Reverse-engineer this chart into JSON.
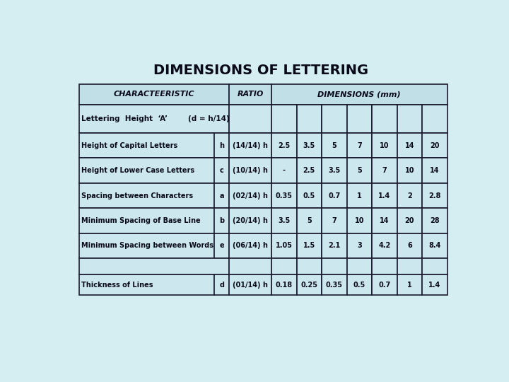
{
  "title": "DIMENSIONS OF LETTERING",
  "bg_color": "#d4eef2",
  "table_bg": "#cce8ee",
  "header_bg": "#c0dfe6",
  "border_color": "#1a1a2e",
  "rows": [
    {
      "char": "Height of Capital Letters",
      "sym": "h",
      "ratio": "(14/14) h",
      "vals": [
        "2.5",
        "3.5",
        "5",
        "7",
        "10",
        "14",
        "20"
      ]
    },
    {
      "char": "Height of Lower Case Letters",
      "sym": "c",
      "ratio": "(10/14) h",
      "vals": [
        "-",
        "2.5",
        "3.5",
        "5",
        "7",
        "10",
        "14"
      ]
    },
    {
      "char": "Spacing between Characters",
      "sym": "a",
      "ratio": "(02/14) h",
      "vals": [
        "0.35",
        "0.5",
        "0.7",
        "1",
        "1.4",
        "2",
        "2.8"
      ]
    },
    {
      "char": "Minimum Spacing of Base Line",
      "sym": "b",
      "ratio": "(20/14) h",
      "vals": [
        "3.5",
        "5",
        "7",
        "10",
        "14",
        "20",
        "28"
      ]
    },
    {
      "char": "Minimum Spacing between Words",
      "sym": "e",
      "ratio": "(06/14) h",
      "vals": [
        "1.05",
        "1.5",
        "2.1",
        "3",
        "4.2",
        "6",
        "8.4"
      ]
    }
  ],
  "thick_row": {
    "char": "Thickness of Lines",
    "sym": "d",
    "ratio": "(01/14) h",
    "vals": [
      "0.18",
      "0.25",
      "0.35",
      "0.5",
      "0.7",
      "1",
      "1.4"
    ]
  },
  "lettering_row": "Lettering  Height  ‘A’        (d = h/14)"
}
